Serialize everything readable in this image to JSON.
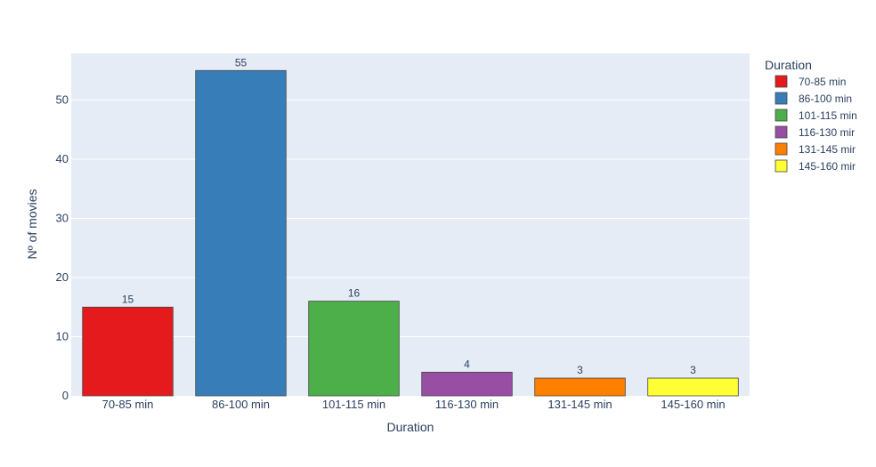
{
  "chart_data": {
    "type": "bar",
    "categories": [
      "70-85 min",
      "86-100 min",
      "101-115 min",
      "116-130 min",
      "131-145 min",
      "145-160 min"
    ],
    "values": [
      15,
      55,
      16,
      4,
      3,
      3
    ],
    "colors": [
      "#e41a1c",
      "#377eb8",
      "#4daf4a",
      "#984ea3",
      "#ff7f00",
      "#ffff33"
    ],
    "title": "",
    "xlabel": "Duration",
    "ylabel": "Nº of movies",
    "ylim": [
      0,
      57.9
    ],
    "yticks": [
      0,
      10,
      20,
      30,
      40,
      50
    ],
    "grid": true,
    "plot_background": "#e5ecf6",
    "legend": {
      "title": "Duration",
      "placement": "right",
      "entries": [
        "70-85 min",
        "86-100 min",
        "101-115 min",
        "116-130 mir",
        "131-145 mir",
        "145-160 mir"
      ]
    }
  }
}
